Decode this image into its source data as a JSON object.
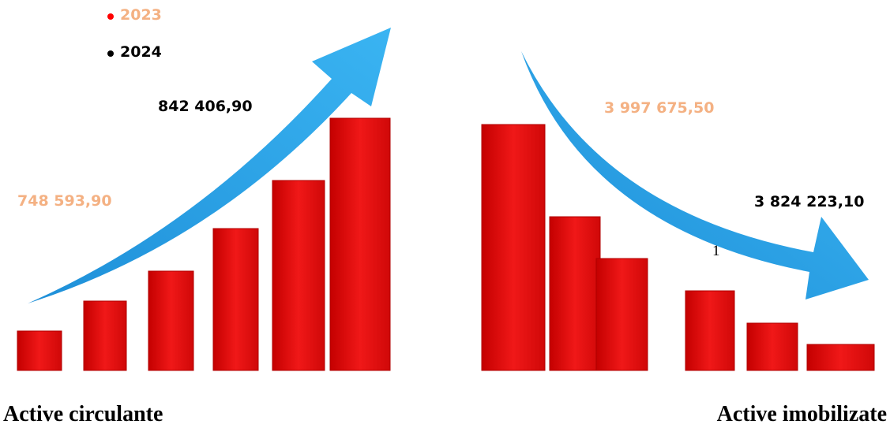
{
  "legend": [
    {
      "label": "2023",
      "color": "#f4b183",
      "dot": "#ff0000"
    },
    {
      "label": "2024",
      "color": "#000000",
      "dot": "#000000"
    }
  ],
  "panels": [
    {
      "title": "Active circulante",
      "labels": [
        "748 593,90",
        "842 406,90"
      ]
    },
    {
      "title": "Active imobilizate",
      "labels": [
        "3 997 675,50",
        "3 824 223,10"
      ]
    }
  ],
  "note": "1"
}
